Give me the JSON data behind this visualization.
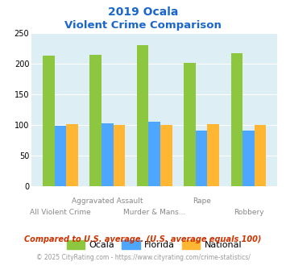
{
  "title_line1": "2019 Ocala",
  "title_line2": "Violent Crime Comparison",
  "categories": [
    "All Violent Crime",
    "Aggravated Assault",
    "Murder & Mans...",
    "Rape",
    "Robbery"
  ],
  "ocala": [
    213,
    215,
    230,
    202,
    217
  ],
  "florida": [
    99,
    103,
    105,
    91,
    91
  ],
  "national": [
    101,
    100,
    100,
    101,
    100
  ],
  "color_ocala": "#8dc63f",
  "color_florida": "#4da6ff",
  "color_national": "#ffb733",
  "bg_color": "#ddeef5",
  "title_color": "#1a66cc",
  "ylim": [
    0,
    250
  ],
  "yticks": [
    0,
    50,
    100,
    150,
    200,
    250
  ],
  "footnote1": "Compared to U.S. average. (U.S. average equals 100)",
  "footnote2": "© 2025 CityRating.com - https://www.cityrating.com/crime-statistics/",
  "footnote1_color": "#cc3300",
  "footnote2_color": "#999999",
  "footnote2_link_color": "#4da6ff"
}
